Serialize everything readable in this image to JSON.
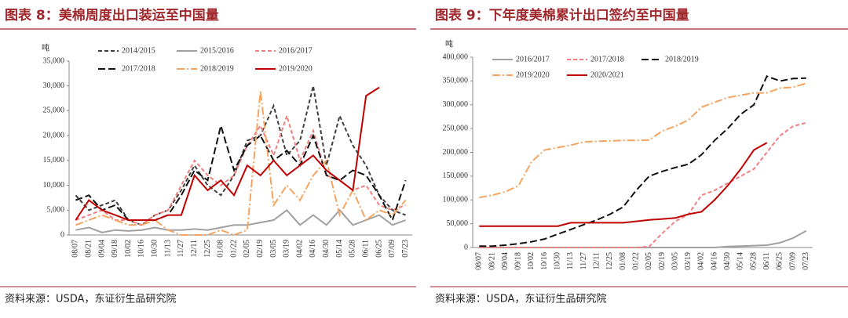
{
  "chart_data": [
    {
      "type": "line",
      "title": "图表 8：美棉周度出口装运至中国量",
      "y_label": "吨",
      "source": "资料来源：USDA，东证衍生品研究院",
      "categories": [
        "08/07",
        "08/21",
        "09/04",
        "09/18",
        "10/02",
        "10/16",
        "10/30",
        "11/13",
        "11/27",
        "12/11",
        "12/25",
        "01/08",
        "01/22",
        "02/05",
        "02/19",
        "03/05",
        "03/19",
        "04/02",
        "04/16",
        "04/30",
        "05/14",
        "05/28",
        "06/11",
        "06/25",
        "07/09",
        "07/23"
      ],
      "ylim": [
        0,
        35000
      ],
      "yticks": [
        0,
        {
          "value": 5000,
          "label": "5,000"
        },
        {
          "value": 10000,
          "label": "10,000"
        },
        {
          "value": 15000,
          "label": "15,000"
        },
        {
          "value": 20000,
          "label": "20,000"
        },
        {
          "value": 25000,
          "label": "25,000"
        },
        {
          "value": 30000,
          "label": "30,000"
        },
        {
          "value": 35000,
          "label": "35,000"
        }
      ],
      "series": [
        {
          "name": "2014/2015",
          "color": "#404040",
          "line_style": "dashed",
          "values": [
            8000,
            5000,
            6000,
            7000,
            3000,
            2000,
            4000,
            5000,
            9000,
            14000,
            10000,
            8000,
            12000,
            19000,
            20000,
            26000,
            16000,
            19000,
            30000,
            14000,
            24000,
            18000,
            14000,
            8000,
            5000,
            4000
          ]
        },
        {
          "name": "2015/2016",
          "color": "#a0a0a0",
          "line_style": "solid",
          "values": [
            1000,
            1500,
            500,
            1000,
            800,
            1000,
            1500,
            1000,
            1000,
            1200,
            1000,
            1500,
            2000,
            2000,
            2500,
            3000,
            5000,
            2000,
            4000,
            2000,
            5000,
            2000,
            3000,
            4000,
            2000,
            3000
          ]
        },
        {
          "name": "2016/2017",
          "color": "#f08080",
          "line_style": "dashed",
          "values": [
            3000,
            4000,
            5000,
            3000,
            3000,
            2000,
            4000,
            5000,
            10000,
            15000,
            12000,
            10000,
            12000,
            18000,
            22000,
            16000,
            24000,
            15000,
            21000,
            12000,
            11000,
            9000,
            10000,
            6000,
            5000,
            6000
          ]
        },
        {
          "name": "2017/2018",
          "color": "#111111",
          "line_style": "longdash",
          "values": [
            7000,
            8000,
            5000,
            6000,
            3000,
            3000,
            3000,
            4000,
            8000,
            13000,
            11000,
            22000,
            13000,
            18000,
            20000,
            15000,
            17000,
            14000,
            20000,
            12000,
            11000,
            13000,
            12000,
            8000,
            3000,
            11000
          ]
        },
        {
          "name": "2018/2019",
          "color": "#f4a460",
          "line_style": "dashdot",
          "values": [
            2000,
            3000,
            4000,
            3000,
            2000,
            2000,
            3000,
            1000,
            0,
            0,
            0,
            1000,
            0,
            1000,
            29000,
            6000,
            10000,
            7000,
            12000,
            15000,
            4000,
            9000,
            3000,
            5000,
            4000,
            7000
          ]
        },
        {
          "name": "2019/2020",
          "color": "#c00000",
          "line_style": "solid",
          "values": [
            3000,
            7000,
            5000,
            4000,
            3000,
            3000,
            3000,
            4000,
            4000,
            12000,
            9000,
            11000,
            8000,
            14000,
            12000,
            15000,
            12000,
            14000,
            16000,
            13000,
            11000,
            9000,
            28000,
            29700,
            null,
            null
          ]
        }
      ]
    },
    {
      "type": "line",
      "title": "图表 9：下年度美棉累计出口签约至中国量",
      "y_label": "吨",
      "source": "资料来源：USDA，东证衍生品研究院",
      "categories": [
        "08/07",
        "08/21",
        "09/04",
        "09/18",
        "10/02",
        "10/16",
        "10/30",
        "11/13",
        "11/27",
        "12/11",
        "12/25",
        "01/08",
        "01/22",
        "02/05",
        "02/19",
        "03/05",
        "03/19",
        "04/02",
        "04/16",
        "04/30",
        "05/14",
        "05/28",
        "06/11",
        "06/25",
        "07/09",
        "07/23"
      ],
      "ylim": [
        0,
        400000
      ],
      "yticks": [
        0,
        {
          "value": 50000,
          "label": "50,000"
        },
        {
          "value": 100000,
          "label": "100,000"
        },
        {
          "value": 150000,
          "label": "150,000"
        },
        {
          "value": 200000,
          "label": "200,000"
        },
        {
          "value": 250000,
          "label": "250,000"
        },
        {
          "value": 300000,
          "label": "300,000"
        },
        {
          "value": 350000,
          "label": "350,000"
        },
        {
          "value": 400000,
          "label": "400,000"
        }
      ],
      "series": [
        {
          "name": "2016/2017",
          "color": "#a0a0a0",
          "line_style": "solid",
          "values": [
            0,
            0,
            0,
            0,
            0,
            0,
            0,
            0,
            0,
            0,
            0,
            0,
            0,
            0,
            0,
            0,
            0,
            0,
            0,
            2000,
            3000,
            4000,
            5000,
            10000,
            20000,
            35000
          ]
        },
        {
          "name": "2017/2018",
          "color": "#f08080",
          "line_style": "dashed",
          "values": [
            0,
            0,
            0,
            0,
            0,
            0,
            0,
            0,
            0,
            0,
            0,
            0,
            0,
            2000,
            30000,
            55000,
            70000,
            110000,
            120000,
            135000,
            150000,
            165000,
            200000,
            235000,
            255000,
            262000
          ]
        },
        {
          "name": "2018/2019",
          "color": "#111111",
          "line_style": "longdash",
          "values": [
            3000,
            3000,
            5000,
            8000,
            12000,
            18000,
            28000,
            38000,
            48000,
            58000,
            70000,
            85000,
            120000,
            150000,
            160000,
            168000,
            175000,
            195000,
            225000,
            250000,
            280000,
            300000,
            360000,
            350000,
            355000,
            356000
          ]
        },
        {
          "name": "2019/2020",
          "color": "#f4a460",
          "line_style": "dashdot",
          "values": [
            105000,
            110000,
            117000,
            130000,
            180000,
            205000,
            210000,
            215000,
            222000,
            223000,
            224000,
            225000,
            225000,
            226000,
            245000,
            255000,
            268000,
            295000,
            305000,
            315000,
            320000,
            325000,
            325000,
            335000,
            337000,
            345000
          ]
        },
        {
          "name": "2020/2021",
          "color": "#c00000",
          "line_style": "solid",
          "values": [
            45000,
            45000,
            45000,
            45000,
            45000,
            45000,
            45000,
            52000,
            52000,
            52000,
            52000,
            52000,
            55000,
            58000,
            60000,
            62000,
            70000,
            75000,
            100000,
            130000,
            165000,
            205000,
            220000,
            null,
            null,
            null
          ]
        }
      ]
    }
  ]
}
